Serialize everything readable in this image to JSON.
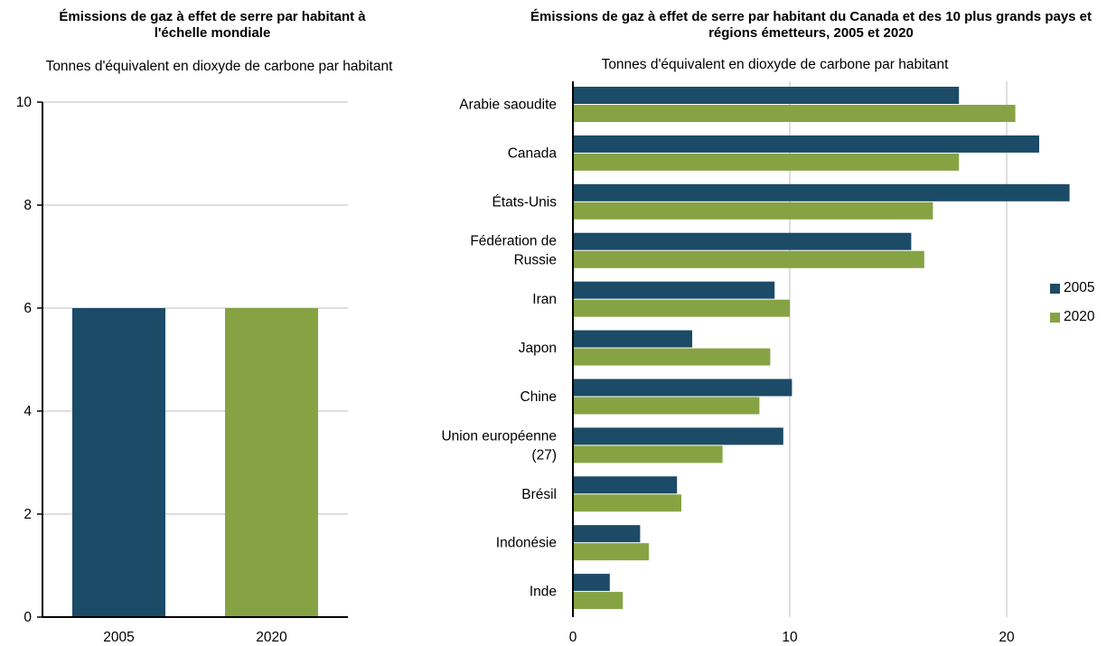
{
  "colors": {
    "series_2005": "#1b4b66",
    "series_2020": "#86a344",
    "grid": "#bdbdbd",
    "axis": "#000000"
  },
  "chart_data": [
    {
      "type": "bar",
      "orientation": "vertical",
      "title": "Émissions de gaz à effet de serre par habitant à l'échelle mondiale",
      "subtitle": "Tonnes d'équivalent en dioxyde de carbone par habitant",
      "categories": [
        "2005",
        "2020"
      ],
      "values": [
        6.0,
        6.0
      ],
      "ylim": [
        0,
        10
      ],
      "yticks": [
        "0",
        "2",
        "4",
        "6",
        "8",
        "10"
      ],
      "grid": true
    },
    {
      "type": "bar",
      "orientation": "horizontal",
      "title": "Émissions de gaz à effet de serre par habitant du Canada et des 10 plus grands pays et régions émetteurs, 2005 et 2020",
      "subtitle": "Tonnes d'équivalent en dioxyde de carbone par habitant",
      "categories": [
        "Arabie saoudite",
        "Canada",
        "États-Unis",
        "Fédération de Russie",
        "Iran",
        "Japon",
        "Chine",
        "Union européenne (27)",
        "Brésil",
        "Indonésie",
        "Inde"
      ],
      "category_lines": [
        [
          "Arabie saoudite"
        ],
        [
          "Canada"
        ],
        [
          "États-Unis"
        ],
        [
          "Fédération de",
          "Russie"
        ],
        [
          "Iran"
        ],
        [
          "Japon"
        ],
        [
          "Chine"
        ],
        [
          "Union européenne",
          "(27)"
        ],
        [
          "Brésil"
        ],
        [
          "Indonésie"
        ],
        [
          "Inde"
        ]
      ],
      "series": [
        {
          "name": "2005",
          "values": [
            17.8,
            21.5,
            22.9,
            15.6,
            9.3,
            5.5,
            10.1,
            9.7,
            4.8,
            3.1,
            1.7
          ]
        },
        {
          "name": "2020",
          "values": [
            20.4,
            17.8,
            16.6,
            16.2,
            10.0,
            9.1,
            8.6,
            6.9,
            5.0,
            3.5,
            2.3
          ]
        }
      ],
      "xlim": [
        0,
        25
      ],
      "xticks": [
        "0",
        "10",
        "20"
      ],
      "grid": true,
      "legend": "right"
    }
  ]
}
